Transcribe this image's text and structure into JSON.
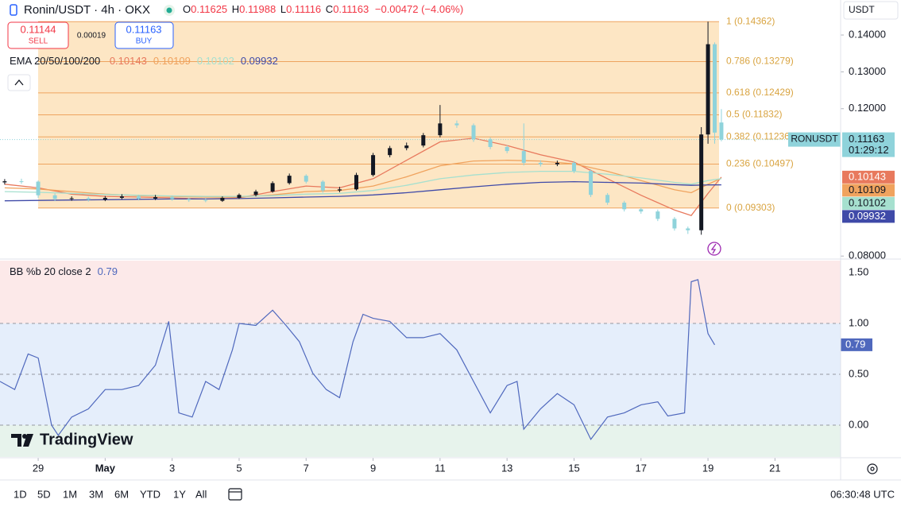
{
  "header": {
    "symbol": "Ronin/USDT · 4h · OKX",
    "ohlc_keys": [
      "O",
      "H",
      "L",
      "C"
    ],
    "change": "−0.00472 (−4.06%)",
    "sell_price": "0.11144",
    "sell": "SELL",
    "spread": "0.00019",
    "buy_price": "0.11163",
    "buy": "BUY",
    "currency": "USDT",
    "brand": "TradingView"
  },
  "toolbar": {
    "ranges": [
      "1D",
      "5D",
      "1M",
      "3M",
      "6M",
      "YTD",
      "1Y",
      "All"
    ],
    "time": "06:30:48 UTC"
  },
  "chart_data": [
    {
      "type": "candlestick",
      "symbol_tag": "RONUSDT",
      "countdown": "01:29:12",
      "up_color": "#131722",
      "down_color": "#8fd3db",
      "tag_color": "#8fd3db",
      "xlim": [
        27.86,
        52.96
      ],
      "ylim": [
        0.0794,
        0.1495
      ],
      "xticks": [
        {
          "value": 29,
          "label": "29"
        },
        {
          "value": 31,
          "label": "May"
        },
        {
          "value": 33,
          "label": "3"
        },
        {
          "value": 35,
          "label": "5"
        },
        {
          "value": 37,
          "label": "7"
        },
        {
          "value": 39,
          "label": "9"
        },
        {
          "value": 41,
          "label": "11"
        },
        {
          "value": 43,
          "label": "13"
        },
        {
          "value": 45,
          "label": "15"
        },
        {
          "value": 47,
          "label": "17"
        },
        {
          "value": 49,
          "label": "19"
        },
        {
          "value": 51,
          "label": "21"
        }
      ],
      "yticks": [
        {
          "value": 0.14,
          "label": "0.14000"
        },
        {
          "value": 0.13,
          "label": "0.13000"
        },
        {
          "value": 0.12,
          "label": "0.12000"
        },
        {
          "value": 0.08,
          "label": "0.08000"
        }
      ],
      "x": [
        28,
        28.5,
        29,
        29.5,
        30,
        30.5,
        31,
        31.5,
        32,
        32.5,
        33,
        33.5,
        34,
        34.5,
        35,
        35.5,
        36,
        36.5,
        37,
        37.5,
        38,
        38.5,
        39,
        39.5,
        40,
        40.5,
        41,
        41.5,
        42,
        42.5,
        43,
        43.5,
        44,
        44.5,
        45,
        45.5,
        46,
        46.5,
        47,
        47.5,
        48,
        48.4,
        48.8,
        49.0,
        49.2,
        49.4
      ],
      "open": [
        0.1,
        0.1003,
        0.1002,
        0.0965,
        0.0955,
        0.0957,
        0.0953,
        0.0958,
        0.0962,
        0.0956,
        0.096,
        0.0955,
        0.0952,
        0.095,
        0.0958,
        0.0966,
        0.0975,
        0.0998,
        0.1018,
        0.1002,
        0.0978,
        0.0981,
        0.102,
        0.1074,
        0.1093,
        0.11,
        0.1128,
        0.116,
        0.1155,
        0.1117,
        0.1096,
        0.1085,
        0.1053,
        0.1049,
        0.1053,
        0.1031,
        0.0966,
        0.0945,
        0.0927,
        0.0921,
        0.0901,
        0.0875,
        0.087,
        0.113,
        0.1375,
        0.11625
      ],
      "high": [
        0.1009,
        0.101,
        0.1005,
        0.097,
        0.0962,
        0.0961,
        0.0963,
        0.0968,
        0.0966,
        0.0966,
        0.0964,
        0.0958,
        0.0956,
        0.0962,
        0.097,
        0.098,
        0.1003,
        0.1024,
        0.1022,
        0.1006,
        0.0988,
        0.1026,
        0.108,
        0.1099,
        0.1108,
        0.1134,
        0.121,
        0.1168,
        0.116,
        0.1122,
        0.1101,
        0.116,
        0.106,
        0.1059,
        0.1058,
        0.1036,
        0.0971,
        0.095,
        0.0932,
        0.0926,
        0.0906,
        0.088,
        0.115,
        0.14362,
        0.138,
        0.11988
      ],
      "low": [
        0.0994,
        0.0996,
        0.0958,
        0.0949,
        0.095,
        0.0948,
        0.0949,
        0.0954,
        0.0951,
        0.0952,
        0.095,
        0.0947,
        0.0946,
        0.0947,
        0.0955,
        0.0962,
        0.0972,
        0.0994,
        0.0997,
        0.0972,
        0.0973,
        0.0978,
        0.1016,
        0.1068,
        0.1087,
        0.1095,
        0.1122,
        0.1148,
        0.111,
        0.109,
        0.1079,
        0.1046,
        0.1043,
        0.1044,
        0.1025,
        0.096,
        0.0939,
        0.0921,
        0.0915,
        0.0895,
        0.0869,
        0.086,
        0.0858,
        0.1105,
        0.1105,
        0.11116
      ],
      "close": [
        0.1003,
        0.1002,
        0.0965,
        0.0955,
        0.0957,
        0.0953,
        0.0958,
        0.0962,
        0.0956,
        0.096,
        0.0955,
        0.0952,
        0.095,
        0.0958,
        0.0966,
        0.0975,
        0.0998,
        0.1018,
        0.1002,
        0.0978,
        0.0981,
        0.102,
        0.1074,
        0.1093,
        0.11,
        0.1128,
        0.116,
        0.1155,
        0.1117,
        0.1096,
        0.1085,
        0.1053,
        0.1049,
        0.1053,
        0.1031,
        0.0966,
        0.0945,
        0.0927,
        0.0921,
        0.0901,
        0.0875,
        0.087,
        0.113,
        0.1375,
        0.1135,
        0.11163
      ],
      "ema_label": "EMA 20/50/100/200",
      "series": [
        {
          "color": "#e8795d",
          "x": [
            28,
            29,
            30,
            31,
            32,
            33,
            34,
            35,
            36,
            37,
            38,
            39,
            40,
            41,
            42,
            43,
            44,
            45,
            46,
            47,
            48,
            48.5,
            49,
            49.4
          ],
          "values": [
            0.0995,
            0.0985,
            0.0968,
            0.0962,
            0.096,
            0.0958,
            0.0955,
            0.0958,
            0.0975,
            0.099,
            0.0985,
            0.101,
            0.106,
            0.111,
            0.112,
            0.11,
            0.1075,
            0.1055,
            0.101,
            0.0965,
            0.0925,
            0.091,
            0.097,
            0.10143
          ]
        },
        {
          "color": "#f0a35e",
          "x": [
            28,
            29,
            30,
            31,
            32,
            33,
            34,
            35,
            36,
            37,
            38,
            39,
            40,
            41,
            42,
            43,
            44,
            45,
            46,
            47,
            48,
            48.5,
            49,
            49.4
          ],
          "values": [
            0.0985,
            0.0982,
            0.0975,
            0.0968,
            0.0964,
            0.0962,
            0.096,
            0.096,
            0.0966,
            0.0975,
            0.0978,
            0.099,
            0.1015,
            0.1045,
            0.1058,
            0.106,
            0.1058,
            0.105,
            0.103,
            0.1005,
            0.098,
            0.0972,
            0.0995,
            0.10109
          ]
        },
        {
          "color": "#a6e0cf",
          "x": [
            28,
            29,
            30,
            31,
            32,
            33,
            34,
            35,
            36,
            37,
            38,
            39,
            40,
            41,
            42,
            43,
            44,
            45,
            46,
            47,
            48,
            48.5,
            49,
            49.4
          ],
          "values": [
            0.0975,
            0.0973,
            0.097,
            0.0967,
            0.0965,
            0.0963,
            0.0962,
            0.0962,
            0.0964,
            0.0968,
            0.097,
            0.0978,
            0.0992,
            0.101,
            0.102,
            0.1027,
            0.103,
            0.103,
            0.1022,
            0.1012,
            0.1,
            0.0995,
            0.1005,
            0.10102
          ]
        },
        {
          "color": "#3f4aa8",
          "x": [
            28,
            29,
            30,
            31,
            32,
            33,
            34,
            35,
            36,
            37,
            38,
            39,
            40,
            41,
            42,
            43,
            44,
            45,
            46,
            47,
            48,
            48.5,
            49,
            49.4
          ],
          "values": [
            0.095,
            0.0951,
            0.0952,
            0.0953,
            0.0954,
            0.0955,
            0.0955,
            0.0956,
            0.0958,
            0.096,
            0.0962,
            0.0966,
            0.0972,
            0.098,
            0.0988,
            0.0995,
            0.1,
            0.1002,
            0.1,
            0.0998,
            0.0994,
            0.0992,
            0.0993,
            0.09932
          ]
        }
      ],
      "fib": {
        "color": "#eea45f",
        "label_color": "#d9a441",
        "fill": "#fde6c4",
        "levels": [
          {
            "price": 0.14362,
            "label": "1 (0.14362)"
          },
          {
            "price": 0.13279,
            "label": "0.786 (0.13279)"
          },
          {
            "price": 0.12429,
            "label": "0.618 (0.12429)"
          },
          {
            "price": 0.11832,
            "label": "0.5 (0.11832)"
          },
          {
            "price": 0.11236,
            "label": "0.382 (0.11236)"
          },
          {
            "price": 0.10497,
            "label": "0.236 (0.10497)"
          },
          {
            "price": 0.09303,
            "label": "0 (0.09303)"
          }
        ]
      }
    },
    {
      "type": "line",
      "indicator_label": "BB %b 20 close 2",
      "ylim": [
        -0.3125,
        1.617
      ],
      "zone_colors": [
        "#fce9e9",
        "#e5eefb",
        "#e7f3ec"
      ],
      "yticks": [
        {
          "value": 1.5,
          "label": "1.50"
        },
        {
          "value": 1.0,
          "label": "1.00"
        },
        {
          "value": 0.5,
          "label": "0.50"
        },
        {
          "value": 0.0,
          "label": "0.00"
        }
      ],
      "series": [
        {
          "color": "#4f68bd",
          "x": [
            27.86,
            28.3,
            28.7,
            29,
            29.4,
            29.6,
            30,
            30.5,
            31,
            31.5,
            32,
            32.5,
            32.9,
            33.2,
            33.6,
            34,
            34.4,
            34.8,
            35,
            35.5,
            36,
            36.4,
            36.8,
            37.2,
            37.6,
            38,
            38.4,
            38.7,
            39,
            39.5,
            40,
            40.5,
            41,
            41.5,
            42,
            42.5,
            43,
            43.3,
            43.5,
            44,
            44.5,
            45,
            45.5,
            46,
            46.5,
            47,
            47.5,
            47.8,
            48.3,
            48.5,
            48.7,
            49.0,
            49.2
          ],
          "values": [
            0.43,
            0.35,
            0.7,
            0.66,
            0.0,
            -0.1,
            0.08,
            0.16,
            0.35,
            0.35,
            0.39,
            0.59,
            1.02,
            0.12,
            0.08,
            0.43,
            0.35,
            0.74,
            1.0,
            0.98,
            1.13,
            0.98,
            0.82,
            0.51,
            0.35,
            0.27,
            0.82,
            1.09,
            1.05,
            1.02,
            0.86,
            0.86,
            0.9,
            0.74,
            0.43,
            0.12,
            0.39,
            0.43,
            -0.04,
            0.16,
            0.31,
            0.2,
            -0.14,
            0.08,
            0.12,
            0.2,
            0.23,
            0.09,
            0.12,
            1.41,
            1.43,
            0.9,
            0.79
          ]
        }
      ]
    }
  ]
}
